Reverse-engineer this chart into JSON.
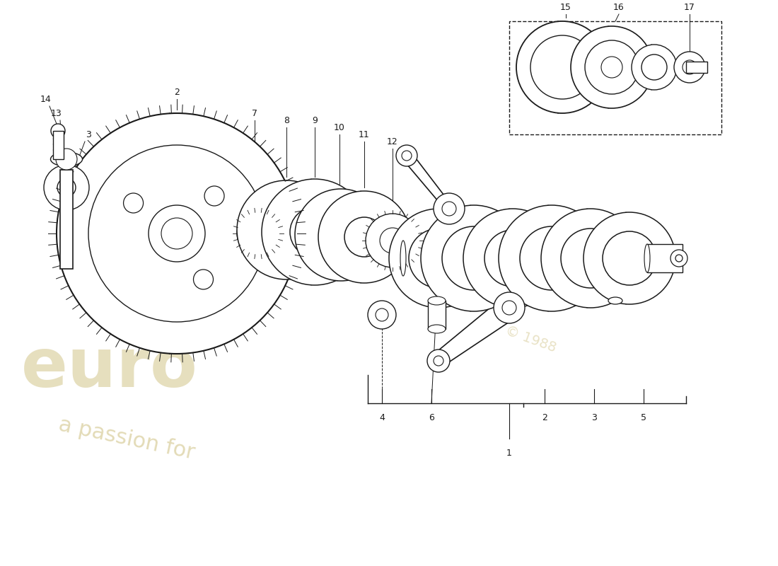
{
  "background_color": "#ffffff",
  "line_color": "#1a1a1a",
  "label_color": "#1a1a1a",
  "watermark_color": "#c8b870",
  "fig_width": 11.0,
  "fig_height": 8.0,
  "dpi": 100
}
